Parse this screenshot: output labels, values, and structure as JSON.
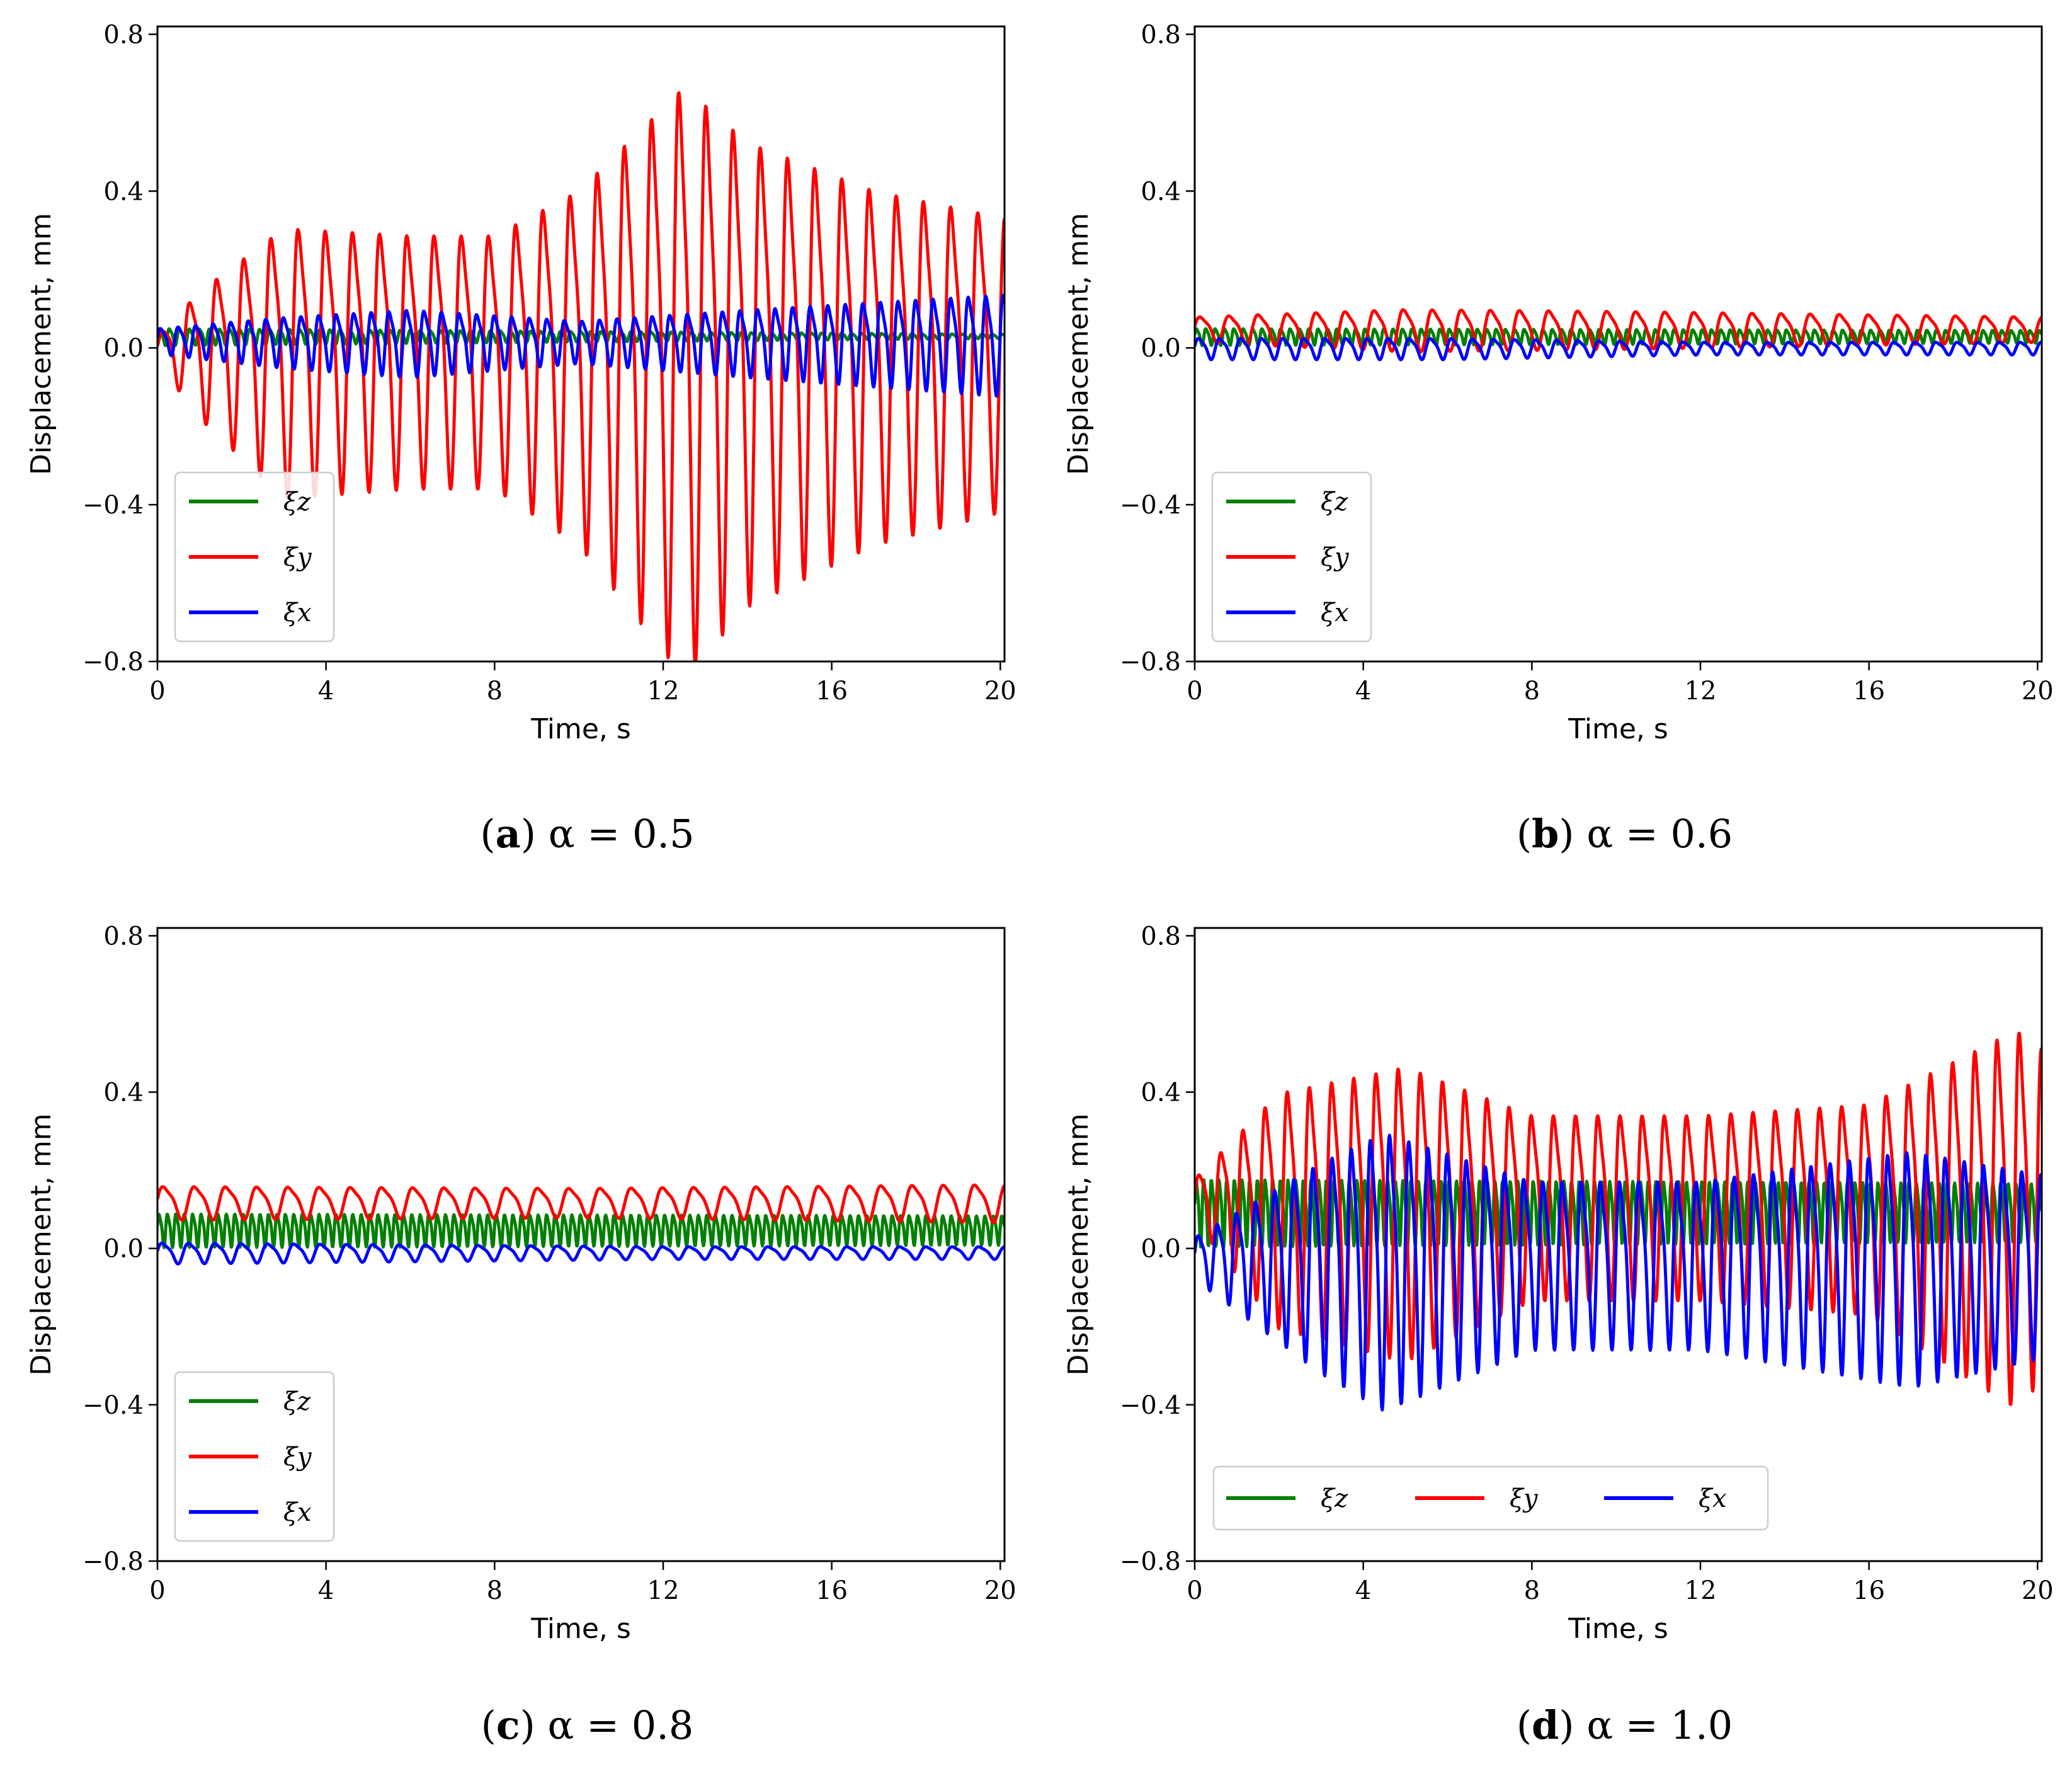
{
  "chart_data": [
    {
      "type": "line",
      "panel": "a",
      "caption_letter": "a",
      "caption_text": "α = 0.5",
      "xlabel": "Time, s",
      "ylabel": "Displacement, mm",
      "xlim": [
        0,
        20.1
      ],
      "ylim": [
        -0.8,
        0.82
      ],
      "xticks": [
        "0",
        "4",
        "8",
        "12",
        "16",
        "20"
      ],
      "yticks": [
        "−0.8",
        "−0.4",
        "0.0",
        "0.4",
        "0.8"
      ],
      "legend": {
        "placement": "lower-left",
        "layout": "vertical"
      },
      "series": [
        {
          "name": "ξz",
          "color": "#008000",
          "freq": 4.2,
          "offset": 0.03,
          "amp_t": [
            0,
            20
          ],
          "amp_v": [
            0.02,
            0.005
          ]
        },
        {
          "name": "ξy",
          "color": "#ff0000",
          "freq": 1.55,
          "offset": 0.0,
          "amp_t": [
            0,
            1,
            3,
            6,
            8,
            10,
            12.5,
            14,
            17,
            20
          ],
          "amp_v": [
            0.03,
            0.15,
            0.32,
            0.3,
            0.3,
            0.42,
            0.7,
            0.55,
            0.42,
            0.35
          ]
        },
        {
          "name": "ξx",
          "color": "#0000ff",
          "freq": 2.4,
          "offset": 0.02,
          "amp_t": [
            0,
            3,
            6,
            10,
            14,
            17,
            20
          ],
          "amp_v": [
            0.03,
            0.06,
            0.08,
            0.05,
            0.08,
            0.1,
            0.12
          ]
        }
      ]
    },
    {
      "type": "line",
      "panel": "b",
      "caption_letter": "b",
      "caption_text": "α = 0.6",
      "xlabel": "Time, s",
      "ylabel": "Displacement, mm",
      "xlim": [
        0,
        20.1
      ],
      "ylim": [
        -0.8,
        0.82
      ],
      "xticks": [
        "0",
        "4",
        "8",
        "12",
        "16",
        "20"
      ],
      "yticks": [
        "−0.8",
        "−0.4",
        "0.0",
        "0.4",
        "0.8"
      ],
      "legend": {
        "placement": "lower-left",
        "layout": "vertical"
      },
      "series": [
        {
          "name": "ξz",
          "color": "#008000",
          "freq": 4.5,
          "offset": 0.03,
          "amp_t": [
            0,
            20
          ],
          "amp_v": [
            0.02,
            0.015
          ]
        },
        {
          "name": "ξy",
          "color": "#ff0000",
          "freq": 1.45,
          "offset": 0.05,
          "amp_t": [
            0,
            5,
            10,
            20
          ],
          "amp_v": [
            0.03,
            0.05,
            0.045,
            0.03
          ]
        },
        {
          "name": "ξx",
          "color": "#0000ff",
          "freq": 2.0,
          "offset": 0.0,
          "amp_t": [
            0,
            6,
            12,
            20
          ],
          "amp_v": [
            0.025,
            0.025,
            0.015,
            0.015
          ]
        }
      ]
    },
    {
      "type": "line",
      "panel": "c",
      "caption_letter": "c",
      "caption_text": "α = 0.8",
      "xlabel": "Time, s",
      "ylabel": "Displacement, mm",
      "xlim": [
        0,
        20.1
      ],
      "ylim": [
        -0.8,
        0.82
      ],
      "xticks": [
        "0",
        "4",
        "8",
        "12",
        "16",
        "20"
      ],
      "yticks": [
        "−0.8",
        "−0.4",
        "0.0",
        "0.4",
        "0.8"
      ],
      "legend": {
        "placement": "lower-left",
        "layout": "vertical"
      },
      "series": [
        {
          "name": "ξz",
          "color": "#008000",
          "freq": 5.0,
          "offset": 0.05,
          "amp_t": [
            0,
            20
          ],
          "amp_v": [
            0.04,
            0.035
          ]
        },
        {
          "name": "ξy",
          "color": "#ff0000",
          "freq": 1.35,
          "offset": 0.12,
          "amp_t": [
            0,
            10,
            20
          ],
          "amp_v": [
            0.04,
            0.035,
            0.045
          ]
        },
        {
          "name": "ξx",
          "color": "#0000ff",
          "freq": 1.6,
          "offset": -0.01,
          "amp_t": [
            0,
            6,
            12,
            20
          ],
          "amp_v": [
            0.025,
            0.02,
            0.015,
            0.015
          ]
        }
      ]
    },
    {
      "type": "line",
      "panel": "d",
      "caption_letter": "d",
      "caption_text": "α = 1.0",
      "xlabel": "Time, s",
      "ylabel": "Displacement, mm",
      "xlim": [
        0,
        20.1
      ],
      "ylim": [
        -0.8,
        0.82
      ],
      "xticks": [
        "0",
        "4",
        "8",
        "12",
        "16",
        "20"
      ],
      "yticks": [
        "−0.8",
        "−0.4",
        "0.0",
        "0.4",
        "0.8"
      ],
      "legend": {
        "placement": "lower-center",
        "layout": "horizontal"
      },
      "series": [
        {
          "name": "ξz",
          "color": "#008000",
          "freq": 5.5,
          "offset": 0.1,
          "amp_t": [
            0,
            20
          ],
          "amp_v": [
            0.08,
            0.07
          ]
        },
        {
          "name": "ξy",
          "color": "#ff0000",
          "freq": 1.9,
          "offset": 0.13,
          "amp_t": [
            0,
            2,
            5,
            8,
            12,
            16,
            19.5,
            20
          ],
          "amp_v": [
            0.05,
            0.28,
            0.35,
            0.22,
            0.22,
            0.25,
            0.45,
            0.4
          ]
        },
        {
          "name": "ξx",
          "color": "#0000ff",
          "freq": 2.2,
          "offset": -0.02,
          "amp_t": [
            0,
            3,
            4.5,
            8,
            12,
            17,
            20
          ],
          "amp_v": [
            0.05,
            0.25,
            0.33,
            0.2,
            0.2,
            0.28,
            0.22
          ]
        }
      ]
    }
  ]
}
